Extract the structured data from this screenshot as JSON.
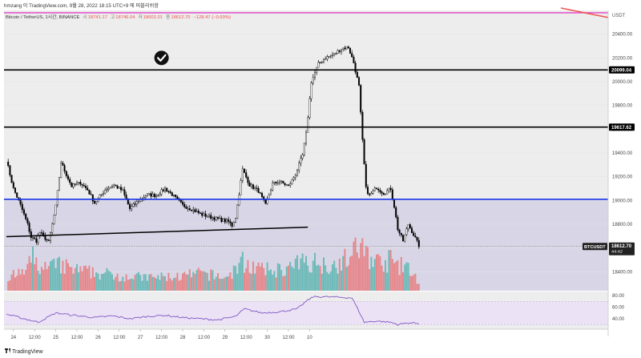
{
  "header": {
    "publisher": "hmzang 이 TradingView.com, 9월 28, 2022 18:15 UTC+9 에 퍼블리쉬함",
    "symbol_line": "Bitcoin / TetherUS, 1시간, BINANCE",
    "ohlc": {
      "o_label": "시",
      "o": "18741.17",
      "h_label": "고",
      "h": "18746.04",
      "l_label": "저",
      "l": "18601.01",
      "c_label": "종",
      "c": "18612.70",
      "change": "−128.47 (−0.69%)"
    }
  },
  "footer": {
    "brand": "TradingView"
  },
  "colors": {
    "up": "#26a69a",
    "down": "#ef5350",
    "candle": "#000000",
    "rsi": "#7e57c2",
    "blue_line": "#1a36e8",
    "magenta_line": "#e040c8",
    "zone_fill": "#d8d6e6",
    "rsi_band": "#ece2f5",
    "chart_bg": "#ededed"
  },
  "icons": {
    "marker": "check-circle-icon",
    "brand_logo": "tradingview-logo-icon"
  },
  "chart_data": [
    {
      "type": "candlestick",
      "title": "Bitcoin / TetherUS, 1시간, BINANCE",
      "currency": "USDT",
      "ylim": [
        18240,
        20600
      ],
      "y_ticks": [
        "20400.00",
        "20200.00",
        "20000.00",
        "19800.00",
        "19600.00",
        "19400.00",
        "19200.00",
        "19000.00",
        "18800.00",
        "18600.00",
        "18400.00"
      ],
      "x_ticks": [
        "24",
        "12:00",
        "25",
        "12:00",
        "26",
        "12:00",
        "27",
        "12:00",
        "28",
        "12:00",
        "29",
        "12:00",
        "30",
        "12:00",
        "10"
      ],
      "price_tags": [
        "20099.04",
        "19617.62"
      ],
      "last_price": {
        "symbol": "BTCUSDT",
        "price": "18612.70",
        "countdown": "44:42"
      },
      "horizontal_levels": [
        {
          "price": 20580,
          "color": "magenta"
        },
        {
          "price": 20099.04,
          "color": "black"
        },
        {
          "price": 19617.62,
          "color": "black"
        },
        {
          "price": 19010,
          "color": "blue"
        }
      ],
      "trendline": {
        "from": {
          "x": "2022-09-23 20:00",
          "y": 18695
        },
        "to": {
          "x": "2022-09-30 23:00",
          "y": 18775
        }
      },
      "marker": {
        "x": "2022-09-27 12:00",
        "y": 20200,
        "icon": "check-circle-icon"
      },
      "rsi": {
        "ylim": [
          22,
          87
        ],
        "y_ticks": [
          "80.00",
          "60.00",
          "40.00"
        ],
        "band": [
          30,
          70
        ]
      },
      "close_path": [
        [
          0,
          19340
        ],
        [
          4,
          19100
        ],
        [
          8,
          18960
        ],
        [
          12,
          18800
        ],
        [
          14,
          18690
        ],
        [
          17,
          18660
        ],
        [
          19,
          18730
        ],
        [
          24,
          18650
        ],
        [
          28,
          18950
        ],
        [
          31,
          19320
        ],
        [
          33,
          19250
        ],
        [
          37,
          19120
        ],
        [
          42,
          19150
        ],
        [
          46,
          19090
        ],
        [
          50,
          18980
        ],
        [
          56,
          19090
        ],
        [
          61,
          19130
        ],
        [
          66,
          19080
        ],
        [
          70,
          18930
        ],
        [
          75,
          19000
        ],
        [
          80,
          19050
        ],
        [
          85,
          19040
        ],
        [
          90,
          19100
        ],
        [
          94,
          19050
        ],
        [
          100,
          18960
        ],
        [
          106,
          18920
        ],
        [
          111,
          18880
        ],
        [
          116,
          18860
        ],
        [
          121,
          18840
        ],
        [
          126,
          18820
        ],
        [
          128,
          18790
        ],
        [
          130,
          18860
        ],
        [
          134,
          19260
        ],
        [
          138,
          19130
        ],
        [
          143,
          19080
        ],
        [
          147,
          18960
        ],
        [
          151,
          19140
        ],
        [
          155,
          19160
        ],
        [
          160,
          19120
        ],
        [
          164,
          19220
        ],
        [
          168,
          19380
        ],
        [
          170,
          19560
        ],
        [
          173,
          20000
        ],
        [
          177,
          20150
        ],
        [
          181,
          20200
        ],
        [
          186,
          20230
        ],
        [
          190,
          20280
        ],
        [
          194,
          20290
        ],
        [
          197,
          20160
        ],
        [
          200,
          19960
        ],
        [
          202,
          19500
        ],
        [
          204,
          19100
        ],
        [
          206,
          19040
        ],
        [
          210,
          19110
        ],
        [
          214,
          19060
        ],
        [
          218,
          19100
        ],
        [
          220,
          18950
        ],
        [
          222,
          18760
        ],
        [
          225,
          18660
        ],
        [
          228,
          18800
        ],
        [
          231,
          18710
        ],
        [
          234,
          18620
        ]
      ],
      "volume_path": [
        [
          0,
          18
        ],
        [
          10,
          25
        ],
        [
          15,
          45
        ],
        [
          20,
          30
        ],
        [
          30,
          35
        ],
        [
          40,
          28
        ],
        [
          60,
          22
        ],
        [
          80,
          18
        ],
        [
          100,
          20
        ],
        [
          110,
          24
        ],
        [
          125,
          18
        ],
        [
          134,
          40
        ],
        [
          145,
          28
        ],
        [
          160,
          30
        ],
        [
          170,
          42
        ],
        [
          185,
          35
        ],
        [
          196,
          48
        ],
        [
          200,
          62
        ],
        [
          205,
          50
        ],
        [
          212,
          38
        ],
        [
          218,
          42
        ],
        [
          222,
          36
        ],
        [
          228,
          30
        ],
        [
          234,
          12
        ]
      ],
      "rsi_path": [
        [
          0,
          48
        ],
        [
          10,
          40
        ],
        [
          18,
          34
        ],
        [
          28,
          50
        ],
        [
          38,
          46
        ],
        [
          50,
          42
        ],
        [
          60,
          45
        ],
        [
          70,
          40
        ],
        [
          80,
          44
        ],
        [
          90,
          46
        ],
        [
          100,
          42
        ],
        [
          110,
          40
        ],
        [
          120,
          38
        ],
        [
          130,
          44
        ],
        [
          135,
          57
        ],
        [
          145,
          50
        ],
        [
          155,
          52
        ],
        [
          165,
          57
        ],
        [
          170,
          70
        ],
        [
          174,
          78
        ],
        [
          180,
          78
        ],
        [
          190,
          77
        ],
        [
          196,
          76
        ],
        [
          200,
          53
        ],
        [
          203,
          34
        ],
        [
          210,
          36
        ],
        [
          218,
          34
        ],
        [
          222,
          30
        ],
        [
          228,
          33
        ],
        [
          234,
          32
        ]
      ]
    }
  ]
}
